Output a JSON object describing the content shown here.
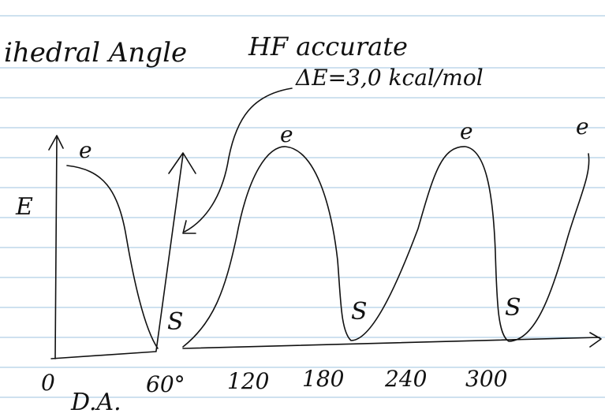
{
  "header": {
    "title": "ihedral Angle",
    "method": "HF accurate",
    "energy": "ΔE=3,0 kcal/mol"
  },
  "axes": {
    "y": "E",
    "x": "D.A."
  },
  "peaks": [
    "e",
    "e",
    "e",
    "e"
  ],
  "minima": [
    "S",
    "S",
    "S"
  ],
  "ticks": [
    "0",
    "60°",
    "120",
    "180",
    "240",
    "300"
  ]
}
